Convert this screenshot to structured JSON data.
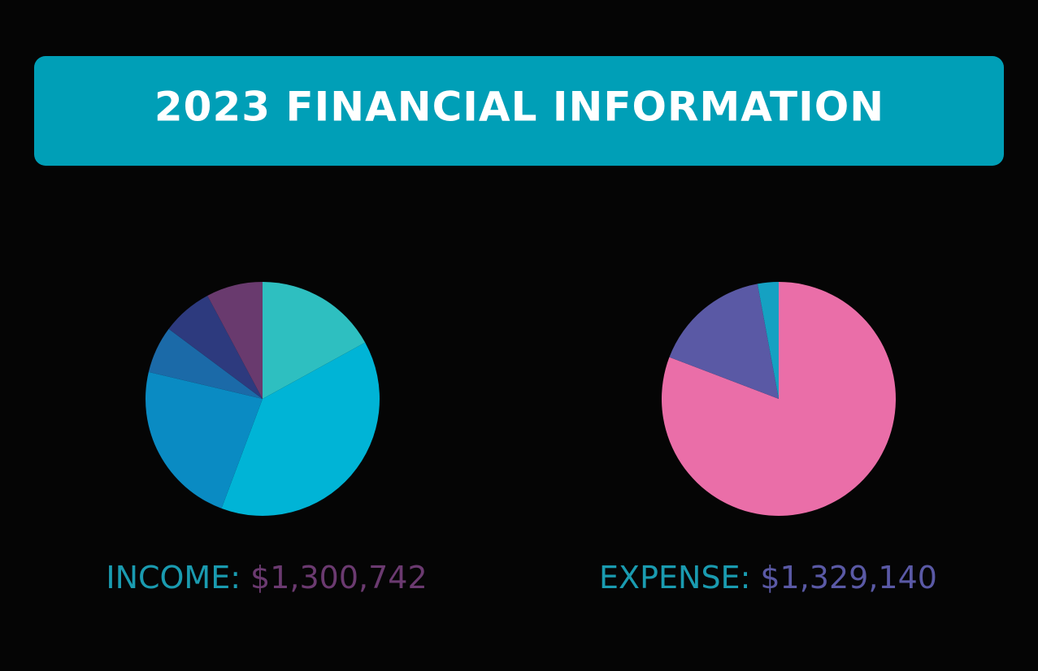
{
  "header": {
    "title": "2023 FINANCIAL INFORMATION"
  },
  "chart_data": [
    {
      "type": "pie",
      "label": "INCOME:",
      "total": "$1,300,742",
      "values": [
        17,
        38.7,
        23,
        6.5,
        7,
        7.8
      ],
      "colors": [
        "#2ebfc0",
        "#00b4d6",
        "#0a8bc3",
        "#1b6aa8",
        "#2d3a7e",
        "#693a6e"
      ],
      "label_color": "#1a9bb0",
      "total_color": "#6b3a70"
    },
    {
      "type": "pie",
      "label": "EXPENSE:",
      "total": "$1,329,140",
      "values": [
        80.8,
        16.3,
        2.9
      ],
      "colors": [
        "#ea6ea8",
        "#5a59a5",
        "#15a1c2"
      ],
      "label_color": "#1a9bb0",
      "total_color": "#5a59a5"
    }
  ]
}
